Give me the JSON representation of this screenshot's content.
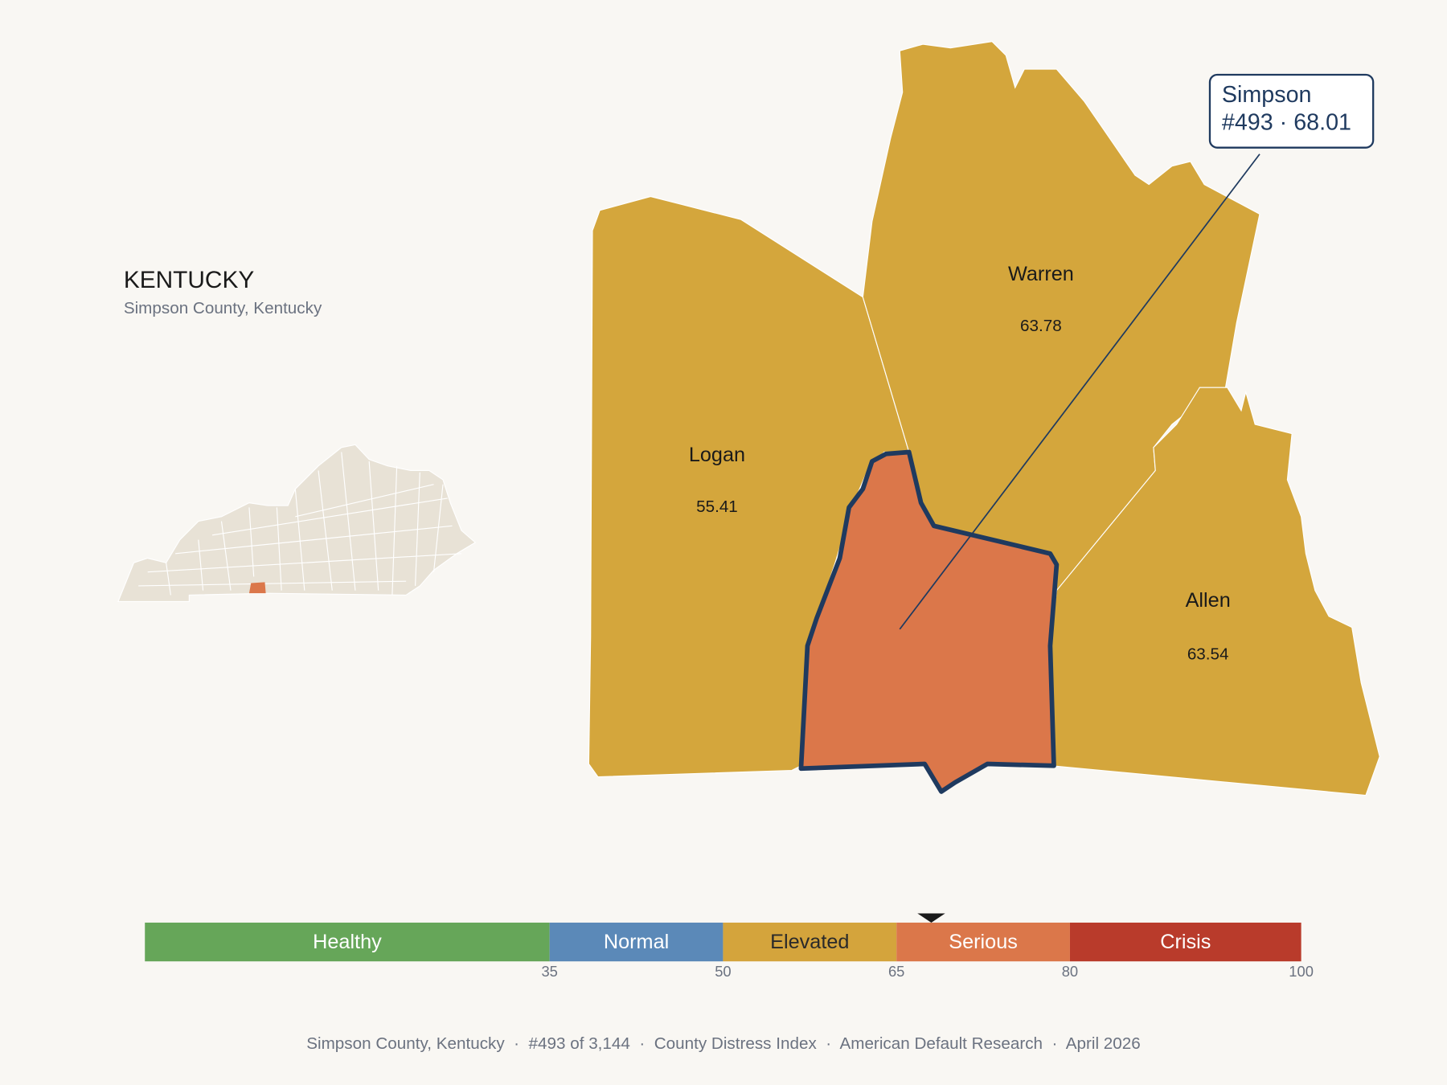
{
  "header": {
    "title": "KENTUCKY",
    "subtitle": "Simpson County, Kentucky"
  },
  "counties": [
    {
      "name": "Logan",
      "value": 55.41,
      "color": "#d4a63c"
    },
    {
      "name": "Warren",
      "value": 63.78,
      "color": "#d4a63c"
    },
    {
      "name": "Allen",
      "value": 63.54,
      "color": "#d4a63c"
    },
    {
      "name": "Simpson",
      "color": "#db774a"
    }
  ],
  "callout": {
    "name": "Simpson",
    "detail": "#493 · 68.01"
  },
  "scale": {
    "range": [
      0,
      100
    ],
    "ticks": [
      35,
      50,
      65,
      80,
      100
    ],
    "marker": 68.01,
    "bands": [
      {
        "label": "Healthy",
        "color": "#66a659",
        "label_color": "#ffffff"
      },
      {
        "label": "Normal",
        "color": "#5b89b8",
        "label_color": "#ffffff"
      },
      {
        "label": "Elevated",
        "color": "#d4a43c",
        "label_color": "#2a2a2a"
      },
      {
        "label": "Serious",
        "color": "#db774a",
        "label_color": "#ffffff"
      },
      {
        "label": "Crisis",
        "color": "#b93b2b",
        "label_color": "#ffffff"
      }
    ]
  },
  "footer": "Simpson County, Kentucky  ·  #493 of 3,144  ·  County Distress Index  ·  American Default Research  ·  April 2026"
}
